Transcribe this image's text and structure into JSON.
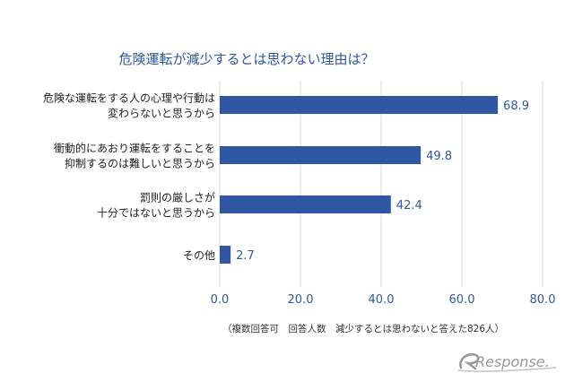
{
  "chart_data": {
    "type": "bar",
    "orientation": "horizontal",
    "title": "危険運転が減少するとは思わない理由は？",
    "categories": [
      [
        "危険な運転をする人の心理や行動は",
        "変わらないと思うから"
      ],
      [
        "衝動的にあおり運転をすることを",
        "抑制するのは難しいと思うから"
      ],
      [
        "罰則の厳しさが",
        "十分ではないと思うから"
      ],
      [
        "その他"
      ]
    ],
    "values": [
      68.9,
      49.8,
      42.4,
      2.7
    ],
    "value_labels": [
      "68.9",
      "49.8",
      "42.4",
      "2.7"
    ],
    "xlim": [
      0,
      80
    ],
    "xticks": [
      "0.0",
      "20.0",
      "40.0",
      "60.0",
      "80.0"
    ],
    "grid": "vertical",
    "bar_color": "#2f57a4",
    "text_color": "#2f57a4",
    "grid_color": "#d9d9d9"
  },
  "note": "（複数回答可　回答人数　減少するとは思わないと答えた826人）",
  "logo": {
    "text": "Response.",
    "icon": "response-r-swoosh-icon",
    "color": "#9a9a9a"
  }
}
